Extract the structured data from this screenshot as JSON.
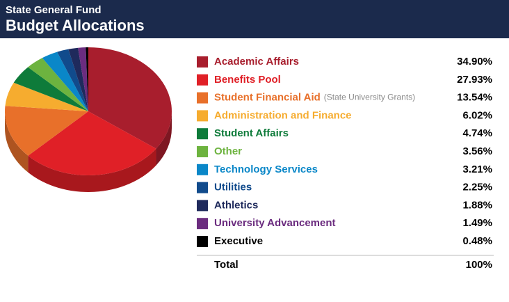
{
  "chart_data": {
    "type": "pie",
    "subtitle": "State General Fund",
    "title": "Budget Allocations",
    "categories": [
      "Academic Affairs",
      "Benefits Pool",
      "Student Financial Aid",
      "Administration and Finance",
      "Student Affairs",
      "Other",
      "Technology Services",
      "Utilities",
      "Athletics",
      "University Advancement",
      "Executive"
    ],
    "notes": [
      null,
      null,
      "(State University Grants)",
      null,
      null,
      null,
      null,
      null,
      null,
      null,
      null
    ],
    "values": [
      34.9,
      27.93,
      13.54,
      6.02,
      4.74,
      3.56,
      3.21,
      2.25,
      1.88,
      1.49,
      0.48
    ],
    "value_labels": [
      "34.90%",
      "27.93%",
      "13.54%",
      "6.02%",
      "4.74%",
      "3.56%",
      "3.21%",
      "2.25%",
      "1.88%",
      "1.49%",
      "0.48%"
    ],
    "colors": [
      "#a81e2d",
      "#e02027",
      "#e8702a",
      "#f6ac2f",
      "#0e7b3a",
      "#6db33f",
      "#0a87c8",
      "#114b8c",
      "#1f2a5c",
      "#6b2c7f",
      "#000000"
    ],
    "total_label": "Total",
    "total": "100%"
  }
}
